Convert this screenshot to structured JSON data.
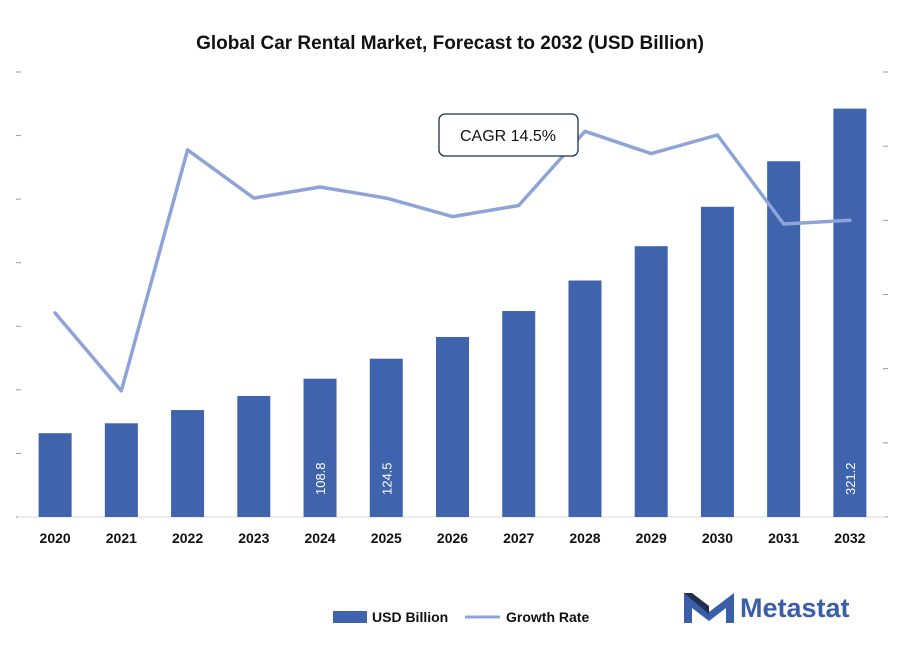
{
  "chart_data": {
    "type": "bar",
    "title": "Global Car Rental Market, Forecast to 2032 (USD Billion)",
    "categories": [
      "2020",
      "2021",
      "2022",
      "2023",
      "2024",
      "2025",
      "2026",
      "2027",
      "2028",
      "2029",
      "2030",
      "2031",
      "2032"
    ],
    "series": [
      {
        "name": "USD Billion",
        "kind": "bar",
        "color": "#3f63ad",
        "values": [
          65.9,
          73.7,
          84.1,
          95.2,
          108.8,
          124.5,
          141.6,
          162.0,
          186.0,
          213.0,
          244.0,
          279.8,
          321.2
        ],
        "data_labels": {
          "4": "108.8",
          "5": "124.5",
          "12": "321.2"
        }
      },
      {
        "name": "Growth Rate",
        "kind": "line",
        "color": "#8ea4d8",
        "values": [
          10.5,
          8.4,
          14.9,
          13.6,
          13.9,
          13.6,
          13.1,
          13.4,
          15.4,
          14.8,
          15.3,
          12.9,
          13.0
        ]
      }
    ],
    "ylim_left": [
      0,
      350
    ],
    "ylim_right": [
      5,
      17
    ],
    "annotation": "CAGR 14.5%",
    "legend": "bottom-center",
    "grid": false
  },
  "brand": {
    "name": "Metastat",
    "color": "#3a5fa8"
  }
}
